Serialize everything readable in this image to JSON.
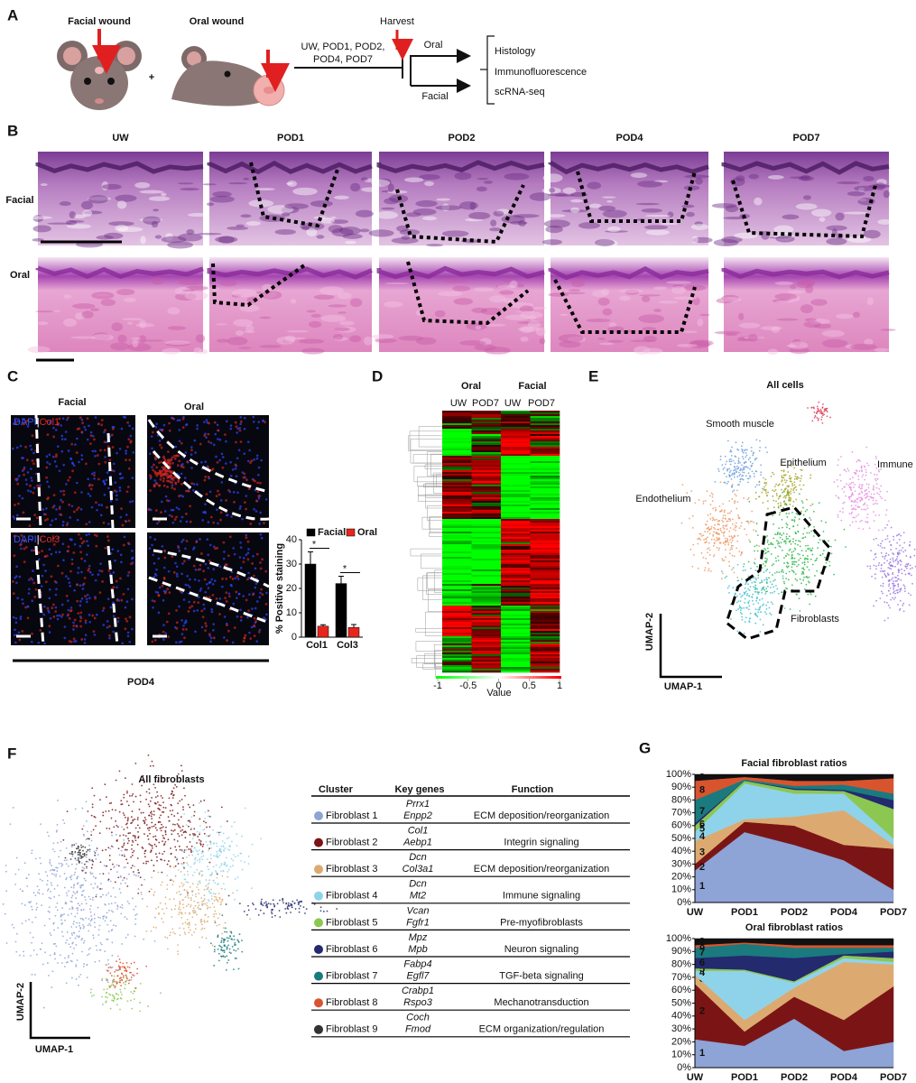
{
  "panel_labels": [
    "A",
    "B",
    "C",
    "D",
    "E",
    "F",
    "G"
  ],
  "panel_a": {
    "facial_title": "Facial wound",
    "oral_title": "Oral wound",
    "plus": "+",
    "harvest": "Harvest",
    "timepoints": [
      "UW, POD1, POD2,",
      "POD4, POD7"
    ],
    "branches": [
      "Oral",
      "Facial"
    ],
    "assays": [
      "Histology",
      "Immunofluorescence",
      "scRNA-seq"
    ]
  },
  "panel_b": {
    "columns": [
      "UW",
      "POD1",
      "POD2",
      "POD4",
      "POD7"
    ],
    "rows": [
      "Facial",
      "Oral"
    ]
  },
  "panel_c": {
    "columns": [
      "Facial",
      "Oral"
    ],
    "stains": [
      [
        "DAPI",
        "|",
        "Col1"
      ],
      [
        "DAPI",
        "|",
        "Col3"
      ]
    ],
    "footer": "POD4"
  },
  "panel_d": {
    "groups": [
      "Oral",
      "Facial"
    ],
    "timepoints": [
      "UW",
      "POD7",
      "UW",
      "POD7"
    ],
    "colorbar_ticks": [
      -1,
      -0.5,
      0,
      0.5,
      1
    ],
    "colorbar_label": "Value"
  },
  "panel_e": {
    "title": "All cells",
    "clusters": [
      {
        "name": "Smooth muscle",
        "color": "#6fa0dc"
      },
      {
        "name": "Epithelium",
        "color": "#a3a322"
      },
      {
        "name": "Immune",
        "color": "#e68ee0"
      },
      {
        "name": "Endothelium",
        "color": "#eb9a66"
      },
      {
        "name": "Fibroblasts",
        "color": "#2db84a"
      }
    ],
    "axes": [
      "UMAP-2",
      "UMAP-1"
    ]
  },
  "panel_f": {
    "title": "All fibroblasts",
    "axes": [
      "UMAP-2",
      "UMAP-1"
    ],
    "table": {
      "header": [
        "Cluster",
        "Key genes",
        "Function"
      ],
      "rows": [
        {
          "cluster": "Fibroblast 1",
          "genes": [
            "Prrx1",
            "Enpp2"
          ],
          "function": "ECM deposition/reorganization",
          "color": "#8ea3d6"
        },
        {
          "cluster": "Fibroblast 2",
          "genes": [
            "Col1",
            "Aebp1"
          ],
          "function": "Integrin signaling",
          "color": "#7b1515"
        },
        {
          "cluster": "Fibroblast 3",
          "genes": [
            "Dcn",
            "Col3a1"
          ],
          "function": "ECM deposition/reorganization",
          "color": "#dcaa70"
        },
        {
          "cluster": "Fibroblast 4",
          "genes": [
            "Dcn",
            "Mt2"
          ],
          "function": "Immune signaling",
          "color": "#8fd3ea"
        },
        {
          "cluster": "Fibroblast 5",
          "genes": [
            "Vcan",
            "Fgfr1"
          ],
          "function": "Pre-myofibroblasts",
          "color": "#8cc751"
        },
        {
          "cluster": "Fibroblast 6",
          "genes": [
            "Mpz",
            "Mpb"
          ],
          "function": "Neuron signaling",
          "color": "#232a6e"
        },
        {
          "cluster": "Fibroblast 7",
          "genes": [
            "Fabp4",
            "Egfl7"
          ],
          "function": "TGF-beta signaling",
          "color": "#1a7a7e"
        },
        {
          "cluster": "Fibroblast 8",
          "genes": [
            "Crabp1",
            "Rspo3"
          ],
          "function": "Mechanotransduction",
          "color": "#d8542e"
        },
        {
          "cluster": "Fibroblast 9",
          "genes": [
            "Coch",
            "Fmod"
          ],
          "function": "ECM organization/regulation",
          "color": "#333333"
        }
      ]
    }
  },
  "chart_data": [
    {
      "type": "bar",
      "ylabel": "% Positive staining",
      "categories": [
        "Col1",
        "Col3"
      ],
      "series": [
        {
          "name": "Facial",
          "color": "#000000",
          "values": [
            30,
            22
          ],
          "errors": [
            5,
            3
          ]
        },
        {
          "name": "Oral",
          "color": "#e8251b",
          "values": [
            4.5,
            4
          ],
          "errors": [
            0.6,
            1.2
          ]
        }
      ],
      "ylim": [
        0,
        40
      ],
      "yticks": [
        0,
        10,
        20,
        30,
        40
      ],
      "annotations": [
        "*",
        "*"
      ],
      "legend": "top"
    },
    {
      "type": "area",
      "stacked": true,
      "title": "Facial fibroblast ratios",
      "categories": [
        "UW",
        "POD1",
        "POD2",
        "POD4",
        "POD7"
      ],
      "series": [
        {
          "name": "1",
          "color": "#8ea3d6",
          "values": [
            25,
            55,
            45,
            33,
            10
          ]
        },
        {
          "name": "2",
          "color": "#7b1515",
          "values": [
            5,
            8,
            15,
            12,
            32
          ]
        },
        {
          "name": "3",
          "color": "#dcaa70",
          "values": [
            18,
            2,
            7,
            27,
            3
          ]
        },
        {
          "name": "4",
          "color": "#8fd3ea",
          "values": [
            7,
            28,
            18,
            13,
            5
          ]
        },
        {
          "name": "5",
          "color": "#8cc751",
          "values": [
            5,
            2,
            3,
            2,
            23
          ]
        },
        {
          "name": "6",
          "color": "#232a6e",
          "values": [
            2,
            0,
            1,
            1,
            7
          ]
        },
        {
          "name": "7",
          "color": "#1a7a7e",
          "values": [
            18,
            1,
            2,
            4,
            5
          ]
        },
        {
          "name": "8",
          "color": "#d8542e",
          "values": [
            15,
            2,
            4,
            3,
            12
          ]
        },
        {
          "name": "9",
          "color": "#111111",
          "values": [
            5,
            2,
            5,
            5,
            3
          ]
        }
      ],
      "ylim": [
        0,
        100
      ],
      "yticks": [
        {
          "value": 0,
          "label": "0%"
        },
        {
          "value": 10,
          "label": "10%"
        },
        {
          "value": 20,
          "label": "20%"
        },
        {
          "value": 30,
          "label": "30%"
        },
        {
          "value": 40,
          "label": "40%"
        },
        {
          "value": 50,
          "label": "50%"
        },
        {
          "value": 60,
          "label": "60%"
        },
        {
          "value": 70,
          "label": "70%"
        },
        {
          "value": 80,
          "label": "80%"
        },
        {
          "value": 90,
          "label": "90%"
        },
        {
          "value": 100,
          "label": "100%"
        }
      ]
    },
    {
      "type": "area",
      "stacked": true,
      "title": "Oral fibroblast ratios",
      "categories": [
        "UW",
        "POD1",
        "POD2",
        "POD4",
        "POD7"
      ],
      "series": [
        {
          "name": "1",
          "color": "#8ea3d6",
          "values": [
            22,
            17,
            38,
            13,
            20
          ]
        },
        {
          "name": "2",
          "color": "#7b1515",
          "values": [
            43,
            11,
            17,
            24,
            43
          ]
        },
        {
          "name": "3",
          "color": "#dcaa70",
          "values": [
            7,
            9,
            7,
            45,
            17
          ]
        },
        {
          "name": "4",
          "color": "#8fd3ea",
          "values": [
            3,
            38,
            4,
            3,
            2
          ]
        },
        {
          "name": "5",
          "color": "#8cc751",
          "values": [
            2,
            1,
            1,
            2,
            3
          ]
        },
        {
          "name": "6",
          "color": "#232a6e",
          "values": [
            8,
            11,
            18,
            1,
            5
          ]
        },
        {
          "name": "7",
          "color": "#1a7a7e",
          "values": [
            8,
            9,
            8,
            5,
            3
          ]
        },
        {
          "name": "8",
          "color": "#d8542e",
          "values": [
            2,
            1,
            2,
            2,
            2
          ]
        },
        {
          "name": "9",
          "color": "#111111",
          "values": [
            5,
            3,
            5,
            5,
            5
          ]
        }
      ],
      "ylim": [
        0,
        100
      ],
      "yticks": [
        {
          "value": 0,
          "label": "0%"
        },
        {
          "value": 10,
          "label": "10%"
        },
        {
          "value": 20,
          "label": "20%"
        },
        {
          "value": 30,
          "label": "30%"
        },
        {
          "value": 40,
          "label": "40%"
        },
        {
          "value": 50,
          "label": "50%"
        },
        {
          "value": 60,
          "label": "60%"
        },
        {
          "value": 70,
          "label": "70%"
        },
        {
          "value": 80,
          "label": "80%"
        },
        {
          "value": 90,
          "label": "90%"
        },
        {
          "value": 100,
          "label": "100%"
        }
      ]
    }
  ]
}
